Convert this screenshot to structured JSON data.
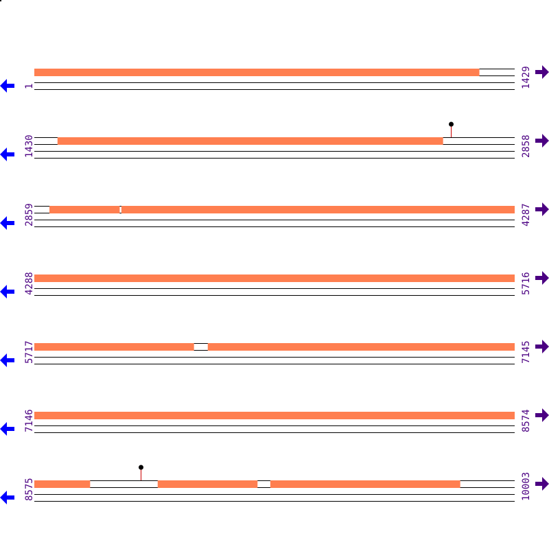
{
  "colors": {
    "feature": "#FF7F50",
    "line": "#000000",
    "label": "#4B0082",
    "left_arrow": "#0000FF",
    "right_arrow": "#4B0082",
    "marker_stem": "#CC0000",
    "marker_head": "#000000"
  },
  "icons": {
    "left": "arrow-left-icon",
    "right": "arrow-right-icon"
  },
  "rows": [
    {
      "start": "1",
      "end": "1429",
      "features": [
        [
          1,
          1324
        ]
      ],
      "markers": []
    },
    {
      "start": "1430",
      "end": "2858",
      "features": [
        [
          1499,
          2645
        ]
      ],
      "markers": [
        2669
      ]
    },
    {
      "start": "2859",
      "end": "4287",
      "features": [
        [
          2904,
          3112
        ],
        [
          3118,
          4287
        ]
      ],
      "markers": []
    },
    {
      "start": "4288",
      "end": "5716",
      "features": [
        [
          4288,
          5716
        ]
      ],
      "markers": []
    },
    {
      "start": "5717",
      "end": "7145",
      "features": [
        [
          5717,
          6191
        ],
        [
          6233,
          7145
        ]
      ],
      "markers": []
    },
    {
      "start": "7146",
      "end": "8574",
      "features": [
        [
          7146,
          8574
        ]
      ],
      "markers": []
    },
    {
      "start": "8575",
      "end": "10003",
      "features": [
        [
          8575,
          8740
        ],
        [
          8942,
          9238
        ],
        [
          9277,
          9841
        ]
      ],
      "markers": [
        8891
      ]
    }
  ]
}
